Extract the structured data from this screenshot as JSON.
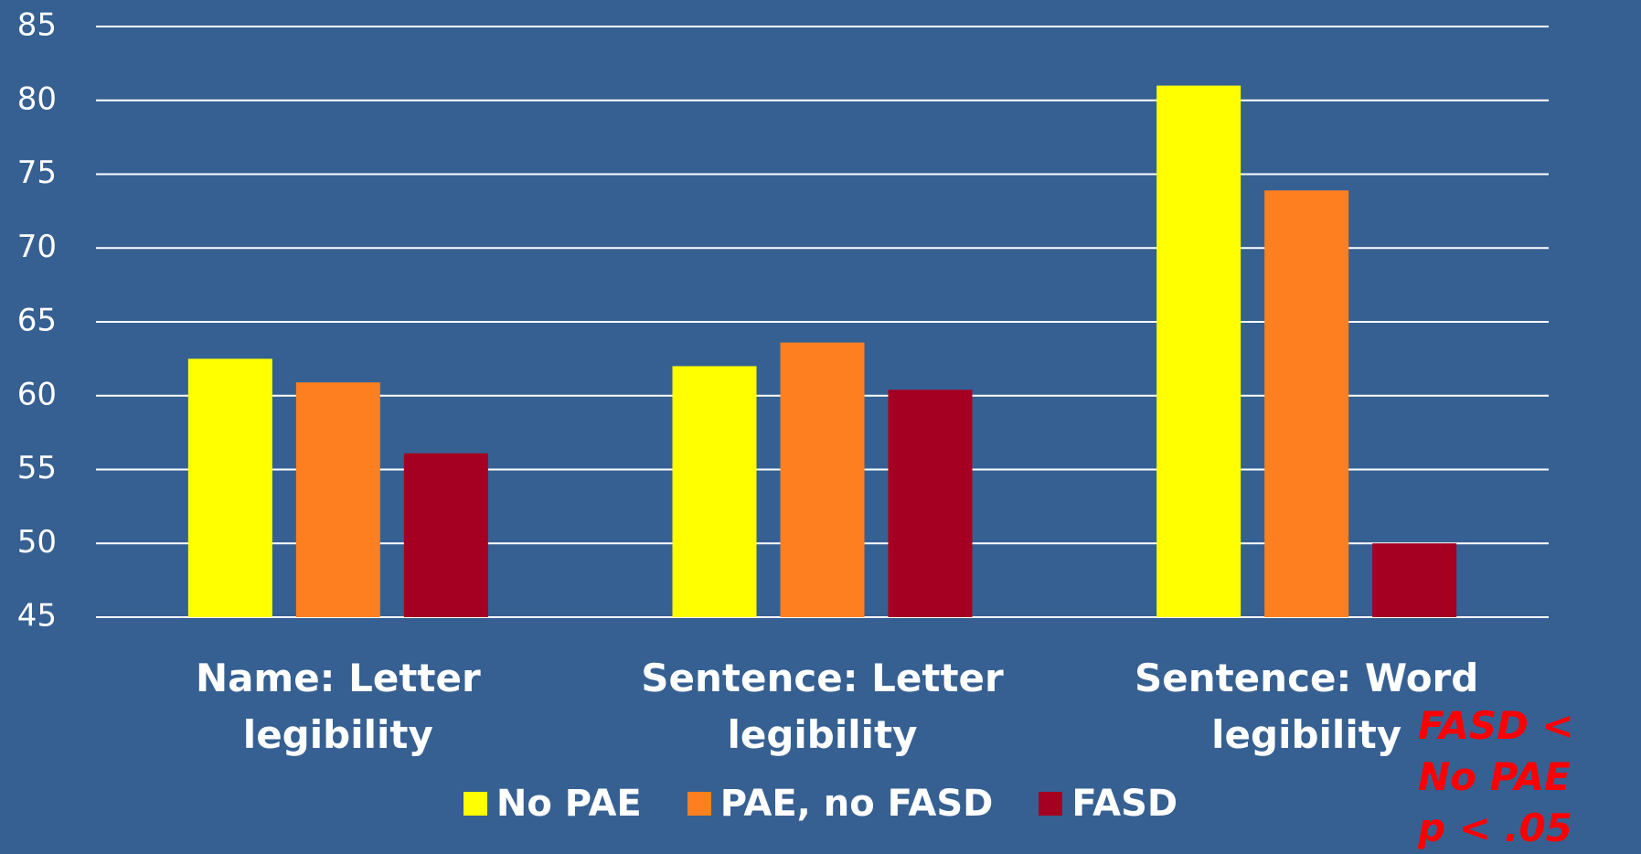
{
  "chart_data": {
    "type": "bar",
    "categories": [
      "Name: Letter legibility",
      "Sentence: Letter legibility",
      "Sentence: Word legibility"
    ],
    "series": [
      {
        "name": "No PAE",
        "color": "#ffff00",
        "values": [
          62.5,
          62,
          81
        ]
      },
      {
        "name": "PAE, no FASD",
        "color": "#fd7f20",
        "values": [
          60.9,
          63.6,
          73.9
        ]
      },
      {
        "name": "FASD",
        "color": "#a50021",
        "values": [
          56.1,
          60.4,
          50
        ]
      }
    ],
    "ylim": [
      45,
      85
    ],
    "yticks": [
      45,
      50,
      55,
      60,
      65,
      70,
      75,
      80,
      85
    ],
    "grid": true,
    "legend": "bottom",
    "annotations": [
      "FASD < No PAE",
      "p < .05"
    ]
  }
}
